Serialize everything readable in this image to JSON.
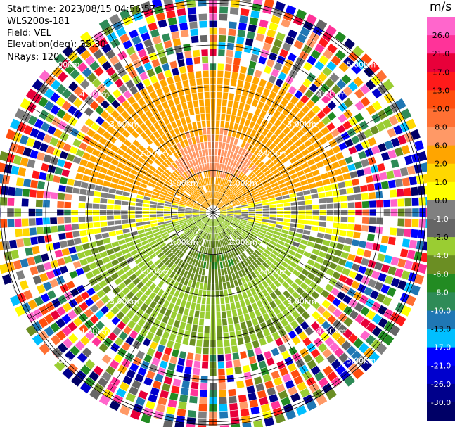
{
  "info": {
    "start_time": "Start time: 2023/08/15 04:56:57",
    "instrument": "WLS200s-181",
    "field": "Field: VEL",
    "elevation": "Elevation(deg): 35.30",
    "nrays": "NRays: 120"
  },
  "colorbar": {
    "unit": "m/s",
    "labels": [
      "26.0",
      "21.0",
      "17.0",
      "13.0",
      "10.0",
      "8.0",
      "6.0",
      "2.0",
      "1.0",
      "0.0",
      "-1.0",
      "-2.0",
      "-4.0",
      "-6.0",
      "-8.0",
      "-10.0",
      "-13.0",
      "-17.0",
      "-21.0",
      "-26.0",
      "-30.0"
    ],
    "colors": [
      "#ff66cc",
      "#ff3399",
      "#e8003a",
      "#ff1a1a",
      "#ff4d0d",
      "#ff7033",
      "#ff9966",
      "#ffa500",
      "#ffd700",
      "#ffff00",
      "#808080",
      "#666666",
      "#9acd32",
      "#6b8e23",
      "#228b22",
      "#2e8b57",
      "#1f77b4",
      "#00bfff",
      "#0000ff",
      "#0000cd",
      "#00008b",
      "#000066"
    ]
  },
  "chart_data": {
    "type": "heatmap",
    "plot": "ppi",
    "field": "VEL",
    "units": "m/s",
    "nrays": 120,
    "elevation_deg": 35.3,
    "range_rings_km": [
      1.0,
      2.0,
      3.0,
      4.0,
      5.0
    ],
    "ring_labels": [
      "1.00km",
      "2.00km",
      "3.00km",
      "4.00km",
      "5.00km"
    ],
    "max_range_km": 5.6,
    "azimuth_lines_deg": [
      0,
      30,
      60,
      90,
      120,
      150,
      180,
      210,
      240,
      270,
      300,
      330
    ],
    "velocity_pattern": {
      "north_sector_peak": 8.0,
      "south_sector_min": -6.0,
      "ring_noise_from_km": 3.3
    }
  }
}
